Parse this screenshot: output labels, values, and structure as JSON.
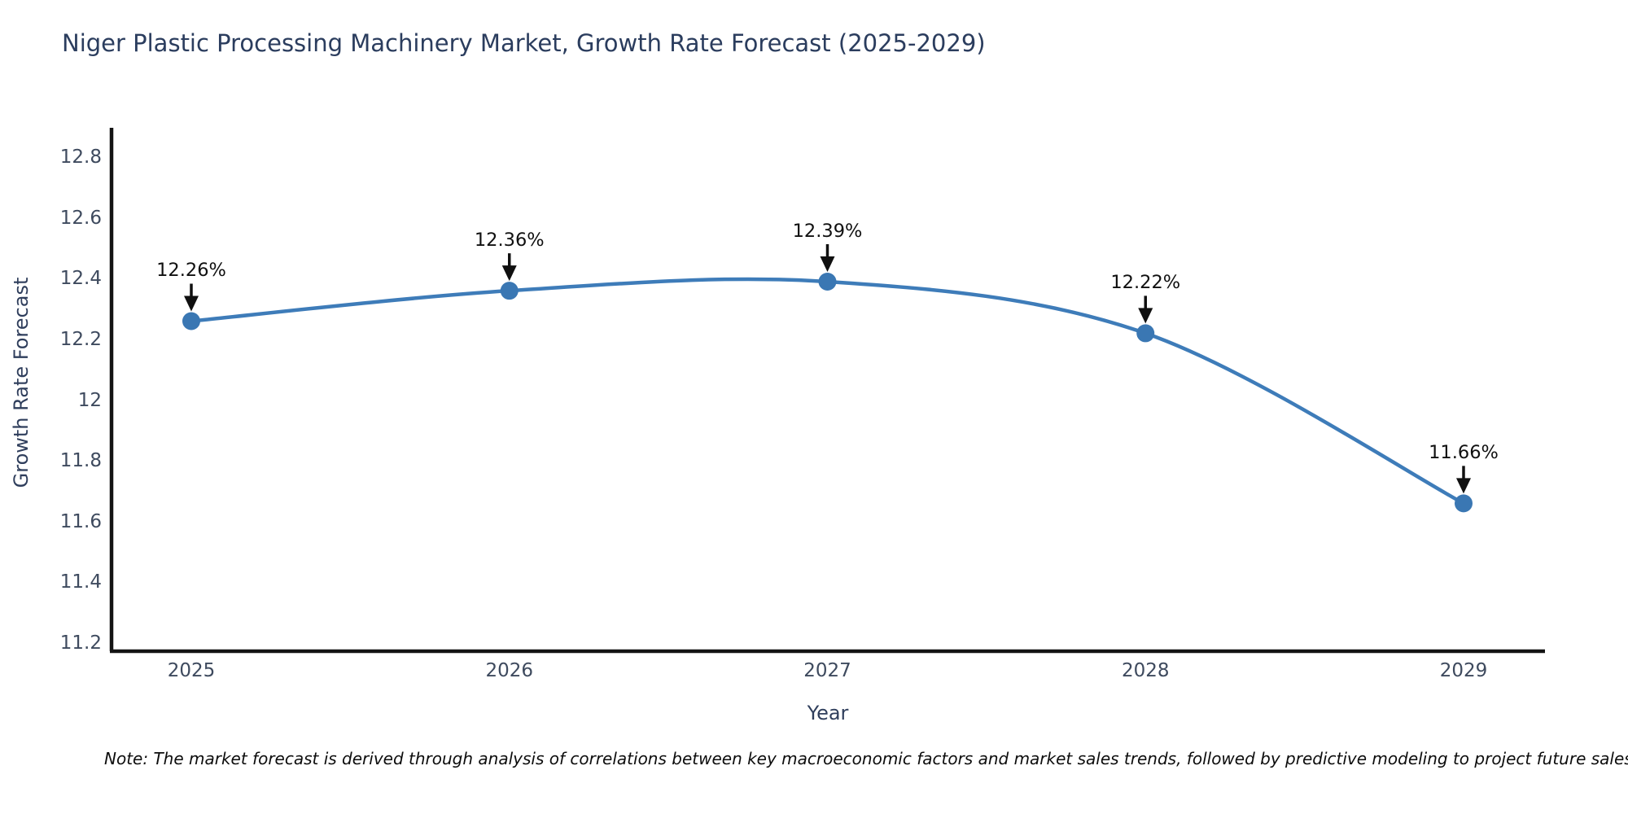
{
  "figure": {
    "title": "Niger Plastic Processing Machinery Market, Growth Rate Forecast (2025-2029)",
    "note": "Note: The market forecast is derived through analysis of correlations between key macroeconomic factors and market sales trends, followed by predictive modeling to project future sales.",
    "colors": {
      "line": "#3e7cb9",
      "marker": "#3a77b3",
      "axis_line": "#141414",
      "annotation": "#101010",
      "title_text": "#2b3d5e",
      "tick_text": "#3e4a5e"
    }
  },
  "chart_data": {
    "type": "line",
    "title": "Niger Plastic Processing Machinery Market, Growth Rate Forecast (2025-2029)",
    "xlabel": "Year",
    "ylabel": "Growth Rate Forecast",
    "x": [
      "2025",
      "2026",
      "2027",
      "2028",
      "2029"
    ],
    "series": [
      {
        "name": "Growth Rate Forecast",
        "values": [
          12.26,
          12.36,
          12.39,
          12.22,
          11.66
        ],
        "labels": [
          "12.26%",
          "12.36%",
          "12.39%",
          "12.22%",
          "11.66%"
        ]
      }
    ],
    "yticks": [
      "11.2",
      "11.4",
      "11.6",
      "11.8",
      "12",
      "12.2",
      "12.4",
      "12.6",
      "12.8"
    ],
    "ylim": [
      11.1,
      12.9
    ],
    "grid": false,
    "legend_position": "none",
    "line_shape": "spline",
    "marker": "circle",
    "annotations_style": "value label with downward black arrow above each point"
  }
}
